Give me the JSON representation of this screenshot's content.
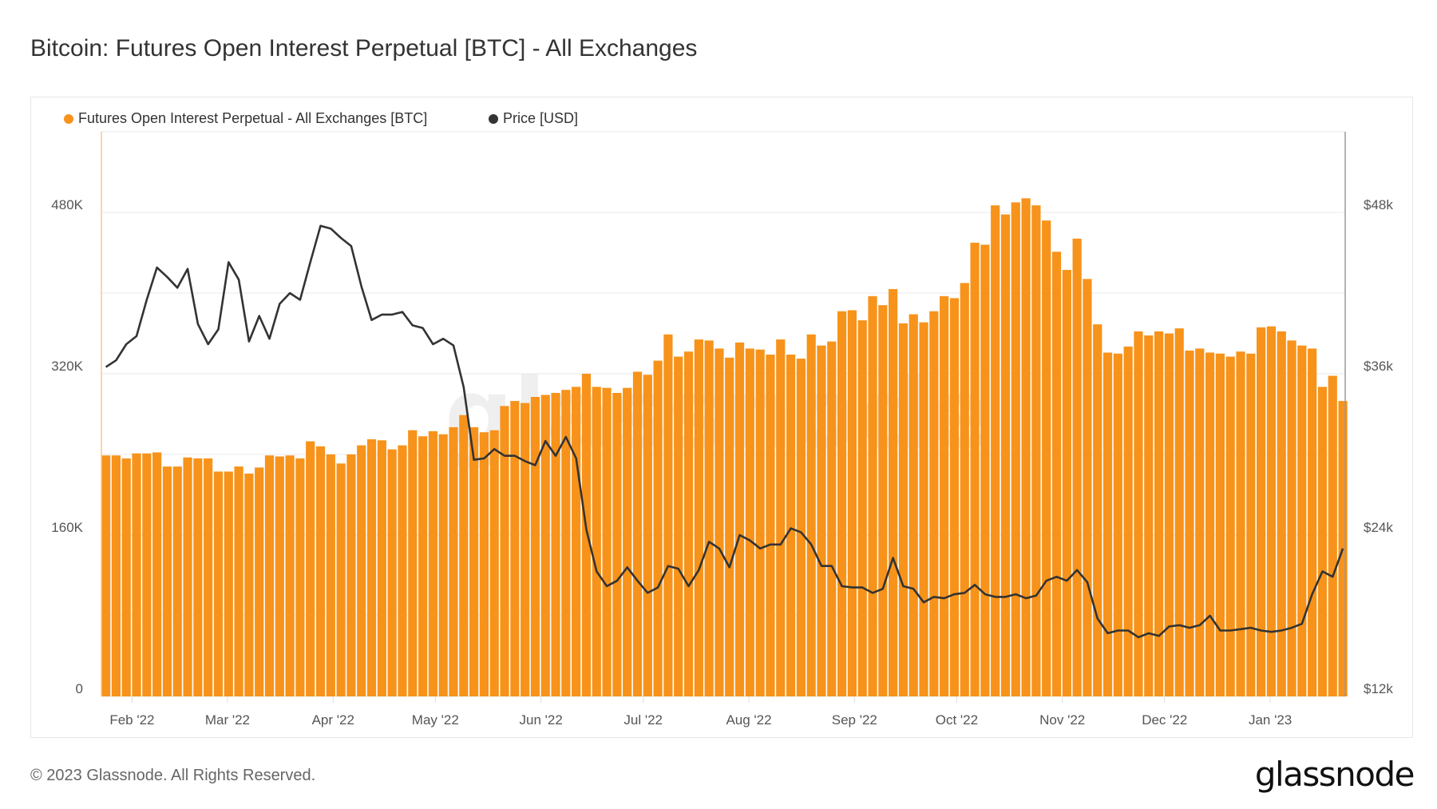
{
  "title": "Bitcoin: Futures Open Interest Perpetual [BTC] - All Exchanges",
  "footer": {
    "copyright": "© 2023 Glassnode. All Rights Reserved.",
    "logo": "glassnode"
  },
  "watermark": "glassnode",
  "colors": {
    "oi_bars": "#f7931a",
    "price_line": "#333333",
    "left_axis": "#f8c98e",
    "right_axis": "#9a9a9a",
    "grid": "#e9e9e9"
  },
  "chart_data": {
    "type": "bar+line",
    "title": "Bitcoin: Futures Open Interest Perpetual [BTC] - All Exchanges",
    "legend": {
      "placement": "top-left",
      "items": [
        {
          "name": "Futures Open Interest Perpetual - All Exchanges [BTC]",
          "color": "#f7931a"
        },
        {
          "name": "Price [USD]",
          "color": "#333333"
        }
      ]
    },
    "grid": true,
    "xlim": [
      "2022-01-23",
      "2023-01-23"
    ],
    "x_ticks": [
      {
        "date": "2022-02-01",
        "label": "Feb '22"
      },
      {
        "date": "2022-03-01",
        "label": "Mar '22"
      },
      {
        "date": "2022-04-01",
        "label": "Apr '22"
      },
      {
        "date": "2022-05-01",
        "label": "May '22"
      },
      {
        "date": "2022-06-01",
        "label": "Jun '22"
      },
      {
        "date": "2022-07-01",
        "label": "Jul '22"
      },
      {
        "date": "2022-08-01",
        "label": "Aug '22"
      },
      {
        "date": "2022-09-01",
        "label": "Sep '22"
      },
      {
        "date": "2022-10-01",
        "label": "Oct '22"
      },
      {
        "date": "2022-11-01",
        "label": "Nov '22"
      },
      {
        "date": "2022-12-01",
        "label": "Dec '22"
      },
      {
        "date": "2023-01-01",
        "label": "Jan '23"
      }
    ],
    "y_left": {
      "lim": [
        0,
        560000
      ],
      "grid_step": 80000,
      "ticks": [
        {
          "value": 0,
          "label": "0"
        },
        {
          "value": 160000,
          "label": "160K"
        },
        {
          "value": 320000,
          "label": "320K"
        },
        {
          "value": 480000,
          "label": "480K"
        }
      ]
    },
    "y_right": {
      "lim": [
        12000,
        54000
      ],
      "scale": "linear",
      "ticks": [
        {
          "value": 12000,
          "label": "$12k"
        },
        {
          "value": 24000,
          "label": "$24k"
        },
        {
          "value": 36000,
          "label": "$36k"
        },
        {
          "value": 48000,
          "label": "$48k"
        }
      ]
    },
    "x": [
      "2022-01-23",
      "2022-01-26",
      "2022-01-29",
      "2022-02-01",
      "2022-02-04",
      "2022-02-07",
      "2022-02-10",
      "2022-02-13",
      "2022-02-16",
      "2022-02-19",
      "2022-02-22",
      "2022-02-25",
      "2022-02-28",
      "2022-03-03",
      "2022-03-06",
      "2022-03-09",
      "2022-03-12",
      "2022-03-15",
      "2022-03-18",
      "2022-03-21",
      "2022-03-24",
      "2022-03-27",
      "2022-03-30",
      "2022-04-02",
      "2022-04-05",
      "2022-04-08",
      "2022-04-11",
      "2022-04-14",
      "2022-04-17",
      "2022-04-20",
      "2022-04-23",
      "2022-04-26",
      "2022-04-29",
      "2022-05-02",
      "2022-05-05",
      "2022-05-08",
      "2022-05-11",
      "2022-05-14",
      "2022-05-17",
      "2022-05-20",
      "2022-05-23",
      "2022-05-26",
      "2022-05-29",
      "2022-06-01",
      "2022-06-04",
      "2022-06-07",
      "2022-06-10",
      "2022-06-13",
      "2022-06-16",
      "2022-06-19",
      "2022-06-22",
      "2022-06-25",
      "2022-06-28",
      "2022-07-01",
      "2022-07-04",
      "2022-07-07",
      "2022-07-10",
      "2022-07-13",
      "2022-07-16",
      "2022-07-19",
      "2022-07-22",
      "2022-07-25",
      "2022-07-28",
      "2022-07-31",
      "2022-08-03",
      "2022-08-06",
      "2022-08-09",
      "2022-08-12",
      "2022-08-15",
      "2022-08-18",
      "2022-08-21",
      "2022-08-24",
      "2022-08-27",
      "2022-08-30",
      "2022-09-02",
      "2022-09-05",
      "2022-09-08",
      "2022-09-11",
      "2022-09-14",
      "2022-09-17",
      "2022-09-20",
      "2022-09-23",
      "2022-09-26",
      "2022-09-29",
      "2022-10-02",
      "2022-10-05",
      "2022-10-08",
      "2022-10-11",
      "2022-10-14",
      "2022-10-17",
      "2022-10-20",
      "2022-10-23",
      "2022-10-26",
      "2022-10-29",
      "2022-11-01",
      "2022-11-04",
      "2022-11-07",
      "2022-11-10",
      "2022-11-13",
      "2022-11-16",
      "2022-11-19",
      "2022-11-22",
      "2022-11-25",
      "2022-11-28",
      "2022-12-01",
      "2022-12-04",
      "2022-12-07",
      "2022-12-10",
      "2022-12-13",
      "2022-12-16",
      "2022-12-19",
      "2022-12-22",
      "2022-12-25",
      "2022-12-28",
      "2022-12-31",
      "2023-01-03",
      "2023-01-06",
      "2023-01-09",
      "2023-01-12",
      "2023-01-15",
      "2023-01-18",
      "2023-01-21"
    ],
    "series": [
      {
        "name": "Futures Open Interest Perpetual - All Exchanges [BTC]",
        "type": "bar",
        "axis": "left",
        "values": [
          239000,
          239000,
          236000,
          241000,
          241000,
          242000,
          228000,
          228000,
          237000,
          236000,
          236000,
          223000,
          223000,
          228000,
          221000,
          227000,
          239000,
          238000,
          239000,
          236000,
          253000,
          248000,
          240000,
          231000,
          240000,
          249000,
          255000,
          254000,
          245000,
          249000,
          264000,
          258000,
          263000,
          260000,
          267000,
          279000,
          267000,
          262000,
          264000,
          288000,
          293000,
          291000,
          297000,
          299000,
          301000,
          304000,
          307000,
          320000,
          307000,
          306000,
          301000,
          306000,
          322000,
          319000,
          333000,
          359000,
          337000,
          342000,
          354000,
          353000,
          345000,
          336000,
          351000,
          345000,
          344000,
          339000,
          354000,
          339000,
          335000,
          359000,
          348000,
          352000,
          382000,
          383000,
          373000,
          397000,
          388000,
          404000,
          370000,
          379000,
          371000,
          382000,
          397000,
          395000,
          410000,
          450000,
          448000,
          487000,
          478000,
          490000,
          494000,
          487000,
          472000,
          441000,
          423000,
          454000,
          414000,
          369000,
          341000,
          340000,
          347000,
          362000,
          358000,
          362000,
          360000,
          365000,
          343000,
          345000,
          341000,
          340000,
          337000,
          342000,
          340000,
          366000,
          367000,
          362000,
          353000,
          348000,
          345000,
          307000,
          318000,
          293000
        ]
      },
      {
        "name": "Price [USD]",
        "type": "line",
        "axis": "right",
        "values": [
          36500,
          37000,
          38200,
          38800,
          41500,
          43900,
          43200,
          42400,
          43800,
          39700,
          38200,
          39300,
          44300,
          43000,
          38400,
          40300,
          38600,
          41200,
          42000,
          41500,
          44300,
          47000,
          46800,
          46100,
          45500,
          42500,
          40000,
          40400,
          40400,
          40600,
          39600,
          39400,
          38200,
          38600,
          38100,
          35000,
          29600,
          29700,
          30400,
          29900,
          29900,
          29500,
          29200,
          31000,
          29900,
          31300,
          29700,
          24400,
          21300,
          20200,
          20600,
          21600,
          20600,
          19700,
          20100,
          21700,
          21500,
          20200,
          21400,
          23500,
          23000,
          21600,
          24000,
          23600,
          23000,
          23300,
          23300,
          24500,
          24200,
          23300,
          21700,
          21700,
          20200,
          20100,
          20100,
          19700,
          20000,
          22300,
          20200,
          20000,
          19000,
          19400,
          19300,
          19600,
          19700,
          20300,
          19600,
          19400,
          19400,
          19600,
          19300,
          19500,
          20600,
          20900,
          20600,
          21400,
          20500,
          17800,
          16700,
          16900,
          16900,
          16400,
          16700,
          16500,
          17200,
          17300,
          17100,
          17300,
          18000,
          16900,
          16900,
          17000,
          17100,
          16900,
          16800,
          16900,
          17100,
          17400,
          19600,
          21300,
          20900,
          23000
        ]
      }
    ]
  }
}
